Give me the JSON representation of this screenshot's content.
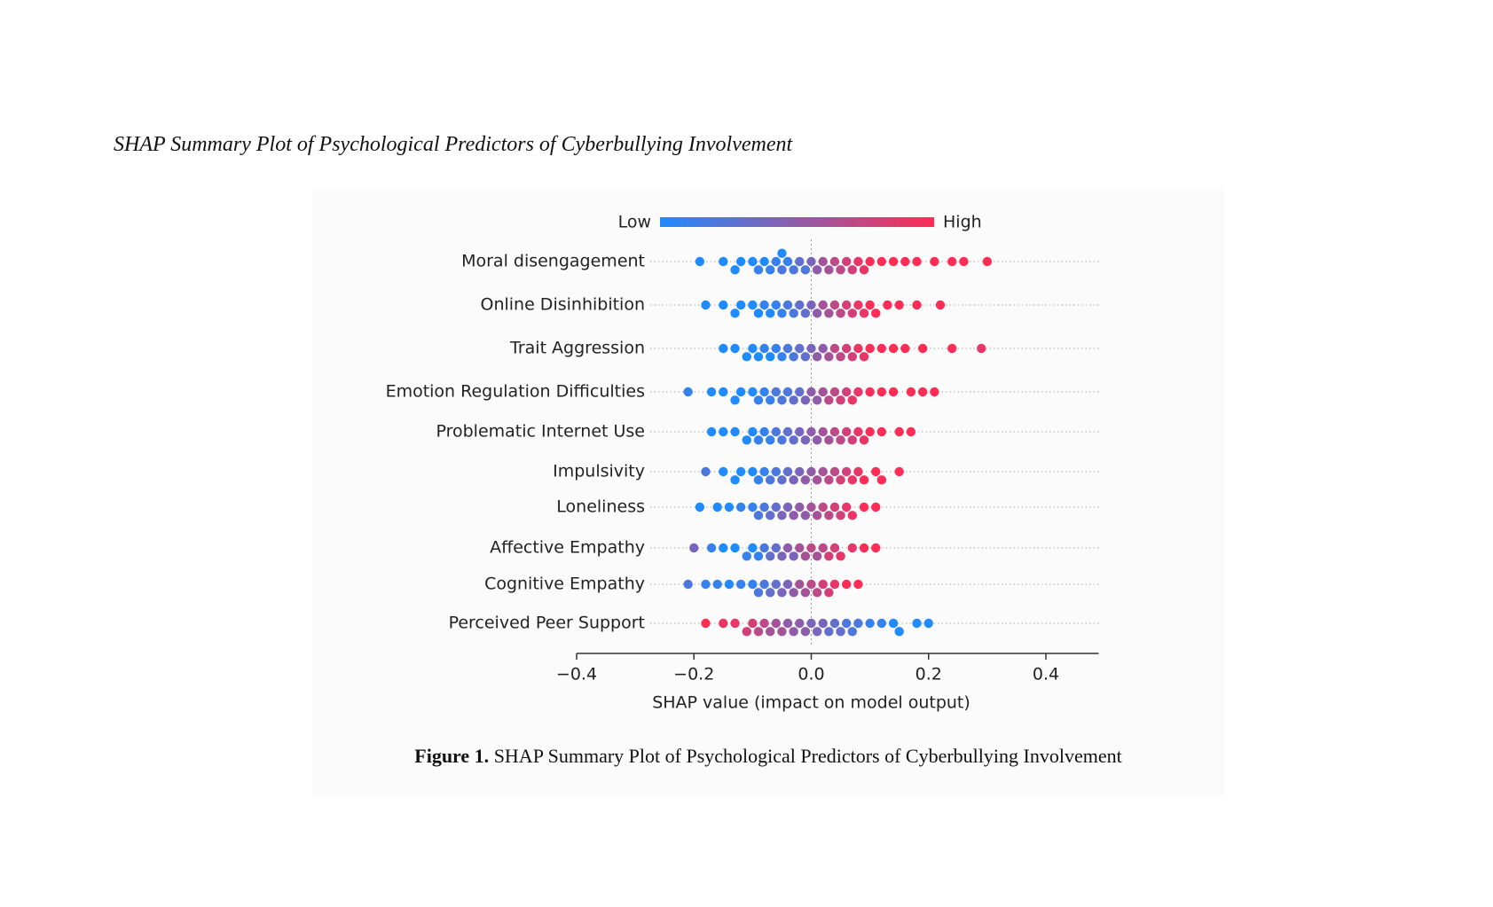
{
  "heading": "SHAP Summary Plot of Psychological Predictors of Cyberbullying Involvement",
  "caption": {
    "label": "Figure 1.",
    "text": "SHAP Summary Plot of Psychological Predictors of Cyberbullying Involvement"
  },
  "chart_data": {
    "type": "beeswarm",
    "xlabel": "SHAP value (impact on model output)",
    "colorbar": {
      "low": "Low",
      "high": "High"
    },
    "colormap": [
      "#1f8bff",
      "#ff2d55"
    ],
    "xlim": [
      -0.4,
      0.49
    ],
    "xticks": [
      {
        "value": -0.4,
        "label": "−0.4"
      },
      {
        "value": -0.2,
        "label": "−0.2"
      },
      {
        "value": 0,
        "label": "0.0"
      },
      0.2,
      0.4
    ],
    "series": [
      {
        "name": "Moral disengagement",
        "values": [
          -0.19,
          -0.15,
          -0.13,
          -0.12,
          -0.1,
          -0.09,
          -0.08,
          -0.07,
          -0.06,
          -0.05,
          -0.05,
          -0.04,
          -0.03,
          -0.02,
          -0.01,
          0.0,
          0.01,
          0.02,
          0.03,
          0.04,
          0.05,
          0.06,
          0.07,
          0.08,
          0.09,
          0.1,
          0.12,
          0.14,
          0.16,
          0.18,
          0.21,
          0.24,
          0.26,
          0.3
        ],
        "feature_values": [
          0,
          0,
          0,
          0,
          0,
          0.1,
          0,
          0.1,
          0.1,
          0.2,
          0,
          0.1,
          0.2,
          0.3,
          0.2,
          0.4,
          0.5,
          0.6,
          0.6,
          0.7,
          0.7,
          0.8,
          0.8,
          0.9,
          0.9,
          1,
          1,
          1,
          1,
          1,
          1,
          1,
          1,
          1
        ]
      },
      {
        "name": "Online Disinhibition",
        "values": [
          -0.18,
          -0.15,
          -0.13,
          -0.12,
          -0.1,
          -0.09,
          -0.08,
          -0.07,
          -0.06,
          -0.05,
          -0.04,
          -0.03,
          -0.02,
          -0.01,
          0.0,
          0.01,
          0.02,
          0.03,
          0.04,
          0.05,
          0.06,
          0.07,
          0.08,
          0.09,
          0.1,
          0.11,
          0.13,
          0.15,
          0.18,
          0.22
        ],
        "feature_values": [
          0,
          0,
          0,
          0,
          0,
          0,
          0.1,
          0,
          0.1,
          0.1,
          0.2,
          0.2,
          0.3,
          0.3,
          0.4,
          0.5,
          0.6,
          0.6,
          0.7,
          0.7,
          0.8,
          0.8,
          0.9,
          0.9,
          1,
          1,
          1,
          1,
          1,
          1
        ]
      },
      {
        "name": "Trait Aggression",
        "values": [
          -0.15,
          -0.13,
          -0.11,
          -0.1,
          -0.09,
          -0.08,
          -0.07,
          -0.06,
          -0.05,
          -0.04,
          -0.03,
          -0.02,
          -0.01,
          0.0,
          0.01,
          0.02,
          0.03,
          0.04,
          0.05,
          0.06,
          0.07,
          0.08,
          0.09,
          0.1,
          0.12,
          0.14,
          0.16,
          0.19,
          0.24,
          0.29
        ],
        "feature_values": [
          0,
          0,
          0,
          0,
          0,
          0.1,
          0,
          0.1,
          0.1,
          0.2,
          0.2,
          0.3,
          0.3,
          0.4,
          0.5,
          0.5,
          0.6,
          0.7,
          0.7,
          0.8,
          0.8,
          0.9,
          0.9,
          1,
          1,
          1,
          1,
          1,
          1,
          0.9
        ]
      },
      {
        "name": "Emotion Regulation Difficulties",
        "values": [
          -0.21,
          -0.17,
          -0.15,
          -0.13,
          -0.12,
          -0.1,
          -0.09,
          -0.08,
          -0.07,
          -0.06,
          -0.05,
          -0.04,
          -0.03,
          -0.02,
          -0.01,
          0.0,
          0.01,
          0.02,
          0.03,
          0.04,
          0.05,
          0.06,
          0.07,
          0.08,
          0.1,
          0.12,
          0.14,
          0.17,
          0.19,
          0.21
        ],
        "feature_values": [
          0.1,
          0,
          0,
          0,
          0,
          0,
          0.1,
          0.1,
          0.1,
          0.2,
          0.2,
          0.2,
          0.3,
          0.3,
          0.4,
          0.5,
          0.5,
          0.6,
          0.7,
          0.7,
          0.8,
          0.8,
          0.9,
          0.9,
          1,
          1,
          1,
          1,
          1,
          1
        ]
      },
      {
        "name": "Problematic Internet Use",
        "values": [
          -0.17,
          -0.15,
          -0.13,
          -0.11,
          -0.1,
          -0.09,
          -0.08,
          -0.07,
          -0.06,
          -0.05,
          -0.04,
          -0.03,
          -0.02,
          -0.01,
          0.0,
          0.01,
          0.02,
          0.03,
          0.04,
          0.05,
          0.06,
          0.07,
          0.08,
          0.09,
          0.1,
          0.12,
          0.15,
          0.17
        ],
        "feature_values": [
          0,
          0,
          0,
          0,
          0,
          0.1,
          0.1,
          0.1,
          0.2,
          0.2,
          0.3,
          0.3,
          0.4,
          0.4,
          0.5,
          0.5,
          0.6,
          0.6,
          0.7,
          0.7,
          0.8,
          0.8,
          0.9,
          0.9,
          1,
          1,
          1,
          1
        ]
      },
      {
        "name": "Impulsivity",
        "values": [
          -0.18,
          -0.15,
          -0.13,
          -0.12,
          -0.1,
          -0.09,
          -0.08,
          -0.07,
          -0.06,
          -0.05,
          -0.04,
          -0.03,
          -0.02,
          -0.01,
          0.0,
          0.01,
          0.02,
          0.03,
          0.04,
          0.05,
          0.06,
          0.07,
          0.08,
          0.09,
          0.11,
          0.12,
          0.15
        ],
        "feature_values": [
          0.2,
          0,
          0,
          0,
          0,
          0.1,
          0.1,
          0.2,
          0.2,
          0.3,
          0.3,
          0.4,
          0.4,
          0.5,
          0.5,
          0.6,
          0.6,
          0.7,
          0.7,
          0.8,
          0.8,
          0.9,
          0.9,
          1,
          1,
          1,
          1
        ]
      },
      {
        "name": "Loneliness",
        "values": [
          -0.19,
          -0.16,
          -0.14,
          -0.12,
          -0.1,
          -0.09,
          -0.08,
          -0.07,
          -0.06,
          -0.05,
          -0.04,
          -0.03,
          -0.02,
          -0.01,
          0.0,
          0.01,
          0.02,
          0.03,
          0.04,
          0.05,
          0.06,
          0.07,
          0.09,
          0.11
        ],
        "feature_values": [
          0,
          0,
          0,
          0.1,
          0.1,
          0.2,
          0.2,
          0.3,
          0.3,
          0.4,
          0.4,
          0.5,
          0.5,
          0.5,
          0.6,
          0.6,
          0.7,
          0.7,
          0.8,
          0.8,
          0.9,
          0.9,
          1,
          1
        ]
      },
      {
        "name": "Affective Empathy",
        "values": [
          -0.2,
          -0.17,
          -0.15,
          -0.13,
          -0.11,
          -0.1,
          -0.09,
          -0.08,
          -0.07,
          -0.06,
          -0.05,
          -0.04,
          -0.03,
          -0.02,
          -0.01,
          0.0,
          0.01,
          0.02,
          0.03,
          0.04,
          0.05,
          0.07,
          0.09,
          0.11
        ],
        "feature_values": [
          0.4,
          0.1,
          0,
          0,
          0.1,
          0,
          0.1,
          0.2,
          0.3,
          0.3,
          0.4,
          0.5,
          0.4,
          0.6,
          0.6,
          0.7,
          0.6,
          0.7,
          0.8,
          0.8,
          0.9,
          0.9,
          1,
          1
        ]
      },
      {
        "name": "Cognitive Empathy",
        "values": [
          -0.21,
          -0.18,
          -0.16,
          -0.14,
          -0.12,
          -0.1,
          -0.09,
          -0.08,
          -0.07,
          -0.06,
          -0.05,
          -0.04,
          -0.03,
          -0.02,
          -0.01,
          0.0,
          0.01,
          0.02,
          0.03,
          0.04,
          0.06,
          0.08
        ],
        "feature_values": [
          0.2,
          0.1,
          0.1,
          0,
          0.1,
          0.1,
          0.2,
          0.2,
          0.3,
          0.3,
          0.4,
          0.4,
          0.5,
          0.6,
          0.6,
          0.7,
          0.7,
          0.8,
          0.8,
          0.9,
          1,
          1
        ]
      },
      {
        "name": "Perceived Peer Support",
        "values": [
          -0.18,
          -0.15,
          -0.13,
          -0.11,
          -0.1,
          -0.09,
          -0.08,
          -0.07,
          -0.06,
          -0.05,
          -0.04,
          -0.03,
          -0.02,
          -0.01,
          0.0,
          0.01,
          0.02,
          0.03,
          0.04,
          0.05,
          0.06,
          0.07,
          0.08,
          0.1,
          0.12,
          0.14,
          0.15,
          0.18,
          0.2
        ],
        "feature_values": [
          1,
          0.9,
          0.9,
          0.8,
          0.8,
          0.7,
          0.7,
          0.6,
          0.6,
          0.6,
          0.5,
          0.5,
          0.5,
          0.5,
          0.4,
          0.4,
          0.4,
          0.3,
          0.3,
          0.3,
          0.2,
          0.2,
          0.2,
          0.1,
          0.1,
          0,
          0,
          0,
          0
        ]
      }
    ]
  }
}
